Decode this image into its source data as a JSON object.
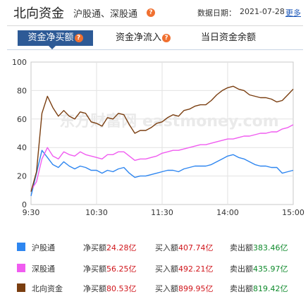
{
  "header": {
    "title": "北向资金",
    "subtitle": "沪股通、深股通",
    "date_label": "数据日期：",
    "date_value": "2021-07-28",
    "more_label": "更多",
    "help_glyph": "?"
  },
  "tabs": [
    {
      "label": "资金净买额",
      "active": true,
      "has_help": true
    },
    {
      "label": "资金净流入",
      "active": false,
      "has_help": true
    },
    {
      "label": "当日资金余额",
      "active": false,
      "has_help": false
    }
  ],
  "chart_data": {
    "type": "line",
    "xlabel": "",
    "ylabel": "",
    "ylim": [
      0,
      100
    ],
    "yticks": [
      "0",
      "20",
      "40",
      "60",
      "80",
      "100"
    ],
    "xticks": [
      "9:30",
      "10:30",
      "11:30",
      "14:00",
      "15:00"
    ],
    "grid": true,
    "watermark": "东方财富网 eastmoney.com",
    "x": [
      "9:30",
      "9:35",
      "9:40",
      "9:45",
      "9:50",
      "9:55",
      "10:00",
      "10:05",
      "10:10",
      "10:15",
      "10:20",
      "10:25",
      "10:30",
      "10:35",
      "10:40",
      "10:45",
      "10:50",
      "10:55",
      "11:00",
      "11:05",
      "11:10",
      "11:15",
      "11:20",
      "11:25",
      "11:30",
      "13:05",
      "13:10",
      "13:15",
      "13:20",
      "13:25",
      "13:30",
      "13:35",
      "13:40",
      "13:45",
      "13:50",
      "13:55",
      "14:00",
      "14:05",
      "14:10",
      "14:15",
      "14:20",
      "14:25",
      "14:30",
      "14:35",
      "14:40",
      "14:45",
      "14:50",
      "14:55",
      "15:00"
    ],
    "series": [
      {
        "name": "沪股通",
        "color": "#2e86f0",
        "values": [
          6,
          22,
          38,
          33,
          28,
          26,
          30,
          27,
          25,
          27,
          26,
          24,
          24,
          22,
          24,
          23,
          25,
          26,
          22,
          19,
          20,
          20,
          21,
          22,
          23,
          24,
          24,
          23,
          25,
          26,
          27,
          27,
          27,
          28,
          30,
          32,
          34,
          35,
          33,
          32,
          30,
          28,
          27,
          27,
          26,
          26,
          22,
          23,
          24
        ]
      },
      {
        "name": "深股通",
        "color": "#f05cf0",
        "values": [
          10,
          16,
          32,
          40,
          34,
          32,
          37,
          35,
          34,
          37,
          35,
          34,
          33,
          32,
          35,
          35,
          37,
          37,
          34,
          31,
          32,
          32,
          33,
          34,
          36,
          37,
          38,
          38,
          39,
          40,
          41,
          42,
          42,
          43,
          44,
          45,
          46,
          46,
          47,
          48,
          48,
          49,
          50,
          50,
          51,
          51,
          53,
          54,
          56
        ]
      },
      {
        "name": "北向资金",
        "color": "#7a3e10",
        "values": [
          9,
          23,
          64,
          76,
          68,
          62,
          66,
          62,
          60,
          65,
          64,
          58,
          57,
          55,
          61,
          60,
          64,
          63,
          56,
          50,
          52,
          52,
          54,
          57,
          58,
          61,
          63,
          62,
          66,
          67,
          69,
          70,
          70,
          73,
          77,
          80,
          82,
          83,
          81,
          80,
          77,
          76,
          75,
          75,
          74,
          72,
          73,
          77,
          81
        ]
      }
    ]
  },
  "legend": [
    {
      "name": "沪股通",
      "color": "#2e86f0",
      "net_label": "净买额",
      "net_value": "24.28亿",
      "buy_label": "买入额",
      "buy_value": "407.74亿",
      "sell_label": "卖出额",
      "sell_value": "383.46亿"
    },
    {
      "name": "深股通",
      "color": "#f05cf0",
      "net_label": "净买额",
      "net_value": "56.25亿",
      "buy_label": "买入额",
      "buy_value": "492.21亿",
      "sell_label": "卖出额",
      "sell_value": "435.97亿"
    },
    {
      "name": "北向资金",
      "color": "#7a3e10",
      "net_label": "净买额",
      "net_value": "80.53亿",
      "buy_label": "买入额",
      "buy_value": "899.95亿",
      "sell_label": "卖出额",
      "sell_value": "819.42亿"
    }
  ]
}
